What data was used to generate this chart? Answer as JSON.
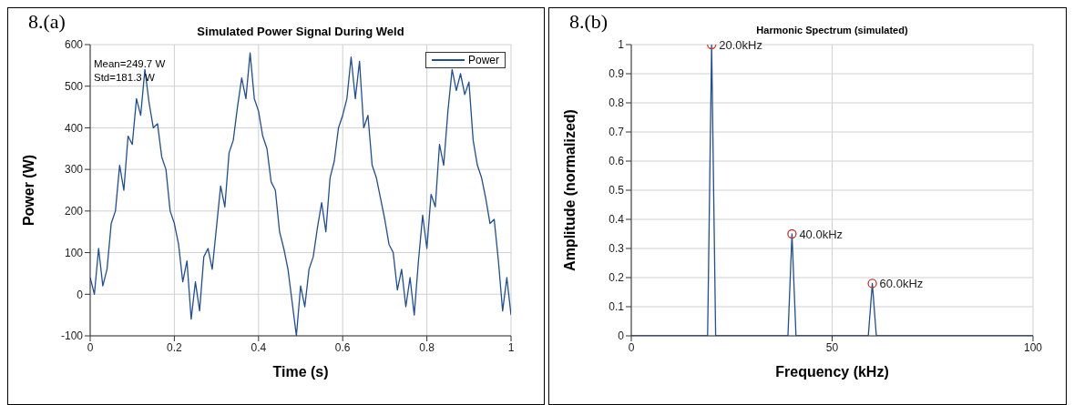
{
  "chart_data": [
    {
      "type": "line",
      "title": "Simulated Power Signal During Weld",
      "xlabel": "Time (s)",
      "ylabel": "Power  (W)",
      "annotations": [
        "8.(a)",
        "Mean=249.7 W",
        "Std=181.3 W"
      ],
      "xlim": [
        0,
        1
      ],
      "xticks": [
        0,
        0.2,
        0.4,
        0.6,
        0.8,
        1
      ],
      "ylim": [
        -100,
        600
      ],
      "yticks": [
        -100,
        0,
        100,
        200,
        300,
        400,
        500,
        600
      ],
      "grid": true,
      "legend": "top right",
      "x": [
        0,
        0.01,
        0.02,
        0.03,
        0.04,
        0.05,
        0.06,
        0.07,
        0.08,
        0.09,
        0.1,
        0.11,
        0.12,
        0.13,
        0.14,
        0.15,
        0.16,
        0.17,
        0.18,
        0.19,
        0.2,
        0.21,
        0.22,
        0.23,
        0.24,
        0.25,
        0.26,
        0.27,
        0.28,
        0.29,
        0.3,
        0.31,
        0.32,
        0.33,
        0.34,
        0.35,
        0.36,
        0.37,
        0.38,
        0.39,
        0.4,
        0.41,
        0.42,
        0.43,
        0.44,
        0.45,
        0.46,
        0.47,
        0.48,
        0.49,
        0.5,
        0.51,
        0.52,
        0.53,
        0.54,
        0.55,
        0.56,
        0.57,
        0.58,
        0.59,
        0.6,
        0.61,
        0.62,
        0.63,
        0.64,
        0.65,
        0.66,
        0.67,
        0.68,
        0.69,
        0.7,
        0.71,
        0.72,
        0.73,
        0.74,
        0.75,
        0.76,
        0.77,
        0.78,
        0.79,
        0.8,
        0.81,
        0.82,
        0.83,
        0.84,
        0.85,
        0.86,
        0.87,
        0.88,
        0.89,
        0.9,
        0.91,
        0.92,
        0.93,
        0.94,
        0.95,
        0.96,
        0.97,
        0.98,
        0.99,
        1
      ],
      "series": [
        {
          "name": "Power",
          "color": "#1f4e9a",
          "values": [
            40,
            0,
            110,
            20,
            60,
            170,
            200,
            310,
            250,
            380,
            360,
            470,
            430,
            540,
            460,
            400,
            410,
            330,
            300,
            200,
            170,
            120,
            30,
            80,
            -60,
            30,
            -40,
            90,
            110,
            60,
            160,
            260,
            210,
            340,
            370,
            450,
            520,
            470,
            580,
            470,
            440,
            380,
            350,
            270,
            250,
            150,
            110,
            60,
            -20,
            -100,
            20,
            -30,
            60,
            90,
            160,
            220,
            150,
            280,
            320,
            400,
            430,
            470,
            570,
            470,
            560,
            400,
            430,
            310,
            280,
            230,
            180,
            120,
            100,
            10,
            60,
            -30,
            40,
            -50,
            80,
            190,
            110,
            240,
            210,
            360,
            310,
            440,
            540,
            490,
            530,
            480,
            510,
            370,
            310,
            280,
            230,
            170,
            180,
            80,
            -40,
            40,
            -50
          ]
        }
      ]
    },
    {
      "type": "line",
      "title": "Harmonic Spectrum (simulated)",
      "xlabel": "Frequency  (kHz)",
      "ylabel": "Amplitude (normalized)",
      "annotations": [
        "8.(b)",
        {
          "text": "20.0kHz",
          "x": 20,
          "y": 1
        },
        {
          "text": "40.0kHz",
          "x": 40,
          "y": 0.35
        },
        {
          "text": "60.0kHz",
          "x": 60,
          "y": 0.18
        }
      ],
      "xlim": [
        0,
        100
      ],
      "xticks": [
        0,
        50,
        100
      ],
      "ylim": [
        0,
        1
      ],
      "yticks": [
        0,
        0.1,
        0.2,
        0.3,
        0.4,
        0.5,
        0.6,
        0.7,
        0.8,
        0.9,
        1
      ],
      "grid": true,
      "series": [
        {
          "color": "#1f4e9a",
          "x": [
            0,
            19,
            20,
            21,
            39,
            40,
            41,
            59,
            60,
            61,
            100
          ],
          "values": [
            0,
            0,
            1,
            0,
            0,
            0.35,
            0,
            0,
            0.18,
            0,
            0
          ]
        },
        {
          "type": "scatter",
          "color": "#c0392b",
          "marker": "circle",
          "x": [
            20,
            40,
            60
          ],
          "values": [
            1,
            0.35,
            0.18
          ]
        }
      ]
    }
  ]
}
